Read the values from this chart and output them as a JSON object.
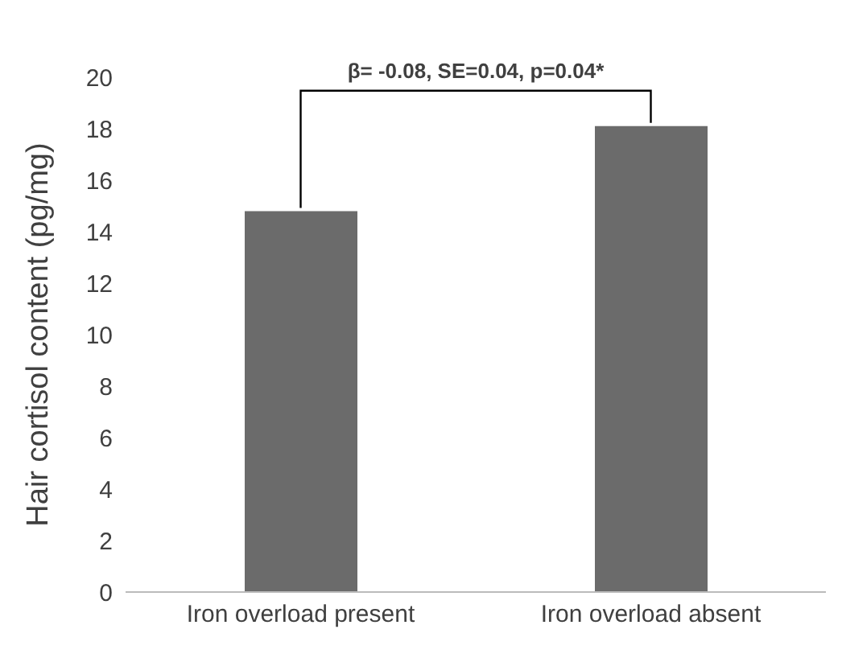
{
  "chart_data": {
    "type": "bar",
    "categories": [
      "Iron overload present",
      "Iron overload absent"
    ],
    "values": [
      14.8,
      18.1
    ],
    "color": "#6b6b6b",
    "ylabel": "Hair cortisol content (pg/mg)",
    "ylim": [
      0,
      20
    ],
    "yticks": [
      0,
      2,
      4,
      6,
      8,
      10,
      12,
      14,
      16,
      18,
      20
    ],
    "grid": false,
    "legend": false,
    "annotations": [
      "β= -0.08, SE=0.04, p=0.04*"
    ]
  }
}
